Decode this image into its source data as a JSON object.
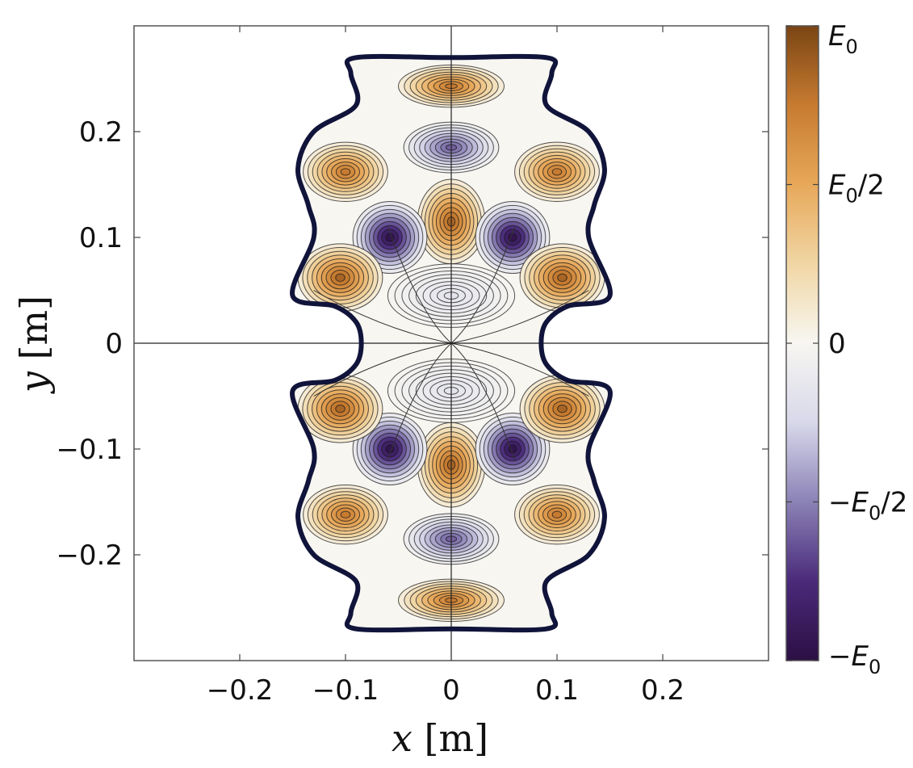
{
  "chart_data": {
    "type": "heatmap",
    "title": "",
    "xlabel": {
      "var": "x",
      "unit": "[m]"
    },
    "ylabel": {
      "var": "y",
      "unit": "[m]"
    },
    "xlim": [
      -0.3,
      0.3
    ],
    "ylim": [
      -0.3,
      0.3
    ],
    "xticks": [
      -0.2,
      -0.1,
      0,
      0.1,
      0.2
    ],
    "yticks": [
      -0.2,
      -0.1,
      0,
      0.1,
      0.2
    ],
    "xtick_labels": [
      "−0.2",
      "−0.1",
      "0",
      "0.1",
      "0.2"
    ],
    "ytick_labels": [
      "−0.2",
      "−0.1",
      "0",
      "0.1",
      "0.2"
    ],
    "grid": false,
    "crosshair_lines": [
      {
        "orientation": "vertical",
        "x": 0
      },
      {
        "orientation": "horizontal",
        "y": 0
      }
    ],
    "colorbar": {
      "position": "right",
      "range": [
        -1,
        1
      ],
      "colors": [
        "#2c0f44",
        "#4a2a7a",
        "#8b82b6",
        "#d8d8ea",
        "#f7f6f1",
        "#f1d6a4",
        "#e7a85a",
        "#c77b30",
        "#7a4514"
      ],
      "ticks": [
        {
          "value": 1,
          "base": "E",
          "sub": "0",
          "prefix": "",
          "suffix": ""
        },
        {
          "value": 0.5,
          "base": "E",
          "sub": "0",
          "prefix": "",
          "suffix": "/2"
        },
        {
          "value": 0,
          "base": "0",
          "sub": "",
          "prefix": "",
          "suffix": ""
        },
        {
          "value": -0.5,
          "base": "E",
          "sub": "0",
          "prefix": "−",
          "suffix": "/2"
        },
        {
          "value": -1,
          "base": "E",
          "sub": "0",
          "prefix": "−",
          "suffix": ""
        }
      ]
    },
    "boundary_outline": [
      [
        0.0,
        0.27
      ],
      [
        0.09,
        0.27
      ],
      [
        0.095,
        0.255
      ],
      [
        0.09,
        0.225
      ],
      [
        0.13,
        0.2
      ],
      [
        0.145,
        0.165
      ],
      [
        0.135,
        0.13
      ],
      [
        0.13,
        0.1
      ],
      [
        0.15,
        0.045
      ],
      [
        0.11,
        0.035
      ],
      [
        0.09,
        0.02
      ],
      [
        0.085,
        0.0
      ],
      [
        0.09,
        -0.02
      ],
      [
        0.11,
        -0.035
      ],
      [
        0.15,
        -0.045
      ],
      [
        0.13,
        -0.1
      ],
      [
        0.135,
        -0.13
      ],
      [
        0.145,
        -0.165
      ],
      [
        0.13,
        -0.2
      ],
      [
        0.09,
        -0.225
      ],
      [
        0.095,
        -0.255
      ],
      [
        0.09,
        -0.27
      ],
      [
        0.0,
        -0.27
      ],
      [
        -0.09,
        -0.27
      ],
      [
        -0.095,
        -0.255
      ],
      [
        -0.09,
        -0.225
      ],
      [
        -0.13,
        -0.2
      ],
      [
        -0.145,
        -0.165
      ],
      [
        -0.135,
        -0.13
      ],
      [
        -0.13,
        -0.1
      ],
      [
        -0.15,
        -0.045
      ],
      [
        -0.11,
        -0.035
      ],
      [
        -0.09,
        -0.02
      ],
      [
        -0.085,
        0.0
      ],
      [
        -0.09,
        0.02
      ],
      [
        -0.11,
        0.035
      ],
      [
        -0.15,
        0.045
      ],
      [
        -0.13,
        0.1
      ],
      [
        -0.135,
        0.13
      ],
      [
        -0.145,
        0.165
      ],
      [
        -0.13,
        0.2
      ],
      [
        -0.09,
        0.225
      ],
      [
        -0.095,
        0.255
      ],
      [
        -0.09,
        0.27
      ]
    ],
    "lobes": [
      {
        "x": 0,
        "y": 0.243,
        "value": 0.75,
        "rx": 0.05,
        "ry": 0.02
      },
      {
        "x": 0,
        "y": 0.185,
        "value": -0.6,
        "rx": 0.045,
        "ry": 0.024
      },
      {
        "x": 0,
        "y": 0.115,
        "value": 0.85,
        "rx": 0.032,
        "ry": 0.04
      },
      {
        "x": -0.058,
        "y": 0.1,
        "value": -0.95,
        "rx": 0.035,
        "ry": 0.034
      },
      {
        "x": 0.058,
        "y": 0.1,
        "value": -0.95,
        "rx": 0.035,
        "ry": 0.034
      },
      {
        "x": -0.1,
        "y": 0.162,
        "value": 0.75,
        "rx": 0.04,
        "ry": 0.028
      },
      {
        "x": 0.1,
        "y": 0.162,
        "value": 0.75,
        "rx": 0.04,
        "ry": 0.028
      },
      {
        "x": -0.105,
        "y": 0.062,
        "value": 0.85,
        "rx": 0.04,
        "ry": 0.032
      },
      {
        "x": 0.105,
        "y": 0.062,
        "value": 0.85,
        "rx": 0.04,
        "ry": 0.032
      },
      {
        "x": 0,
        "y": 0.045,
        "value": -0.15,
        "rx": 0.06,
        "ry": 0.03
      },
      {
        "x": 0,
        "y": -0.243,
        "value": 0.75,
        "rx": 0.05,
        "ry": 0.02
      },
      {
        "x": 0,
        "y": -0.185,
        "value": -0.6,
        "rx": 0.045,
        "ry": 0.024
      },
      {
        "x": 0,
        "y": -0.115,
        "value": 0.85,
        "rx": 0.032,
        "ry": 0.04
      },
      {
        "x": -0.058,
        "y": -0.1,
        "value": -0.95,
        "rx": 0.035,
        "ry": 0.034
      },
      {
        "x": 0.058,
        "y": -0.1,
        "value": -0.95,
        "rx": 0.035,
        "ry": 0.034
      },
      {
        "x": -0.1,
        "y": -0.162,
        "value": 0.75,
        "rx": 0.04,
        "ry": 0.028
      },
      {
        "x": 0.1,
        "y": -0.162,
        "value": 0.75,
        "rx": 0.04,
        "ry": 0.028
      },
      {
        "x": -0.105,
        "y": -0.062,
        "value": 0.85,
        "rx": 0.04,
        "ry": 0.032
      },
      {
        "x": 0.105,
        "y": -0.062,
        "value": 0.85,
        "rx": 0.04,
        "ry": 0.032
      },
      {
        "x": 0,
        "y": -0.045,
        "value": -0.15,
        "rx": 0.06,
        "ry": 0.03
      }
    ]
  }
}
